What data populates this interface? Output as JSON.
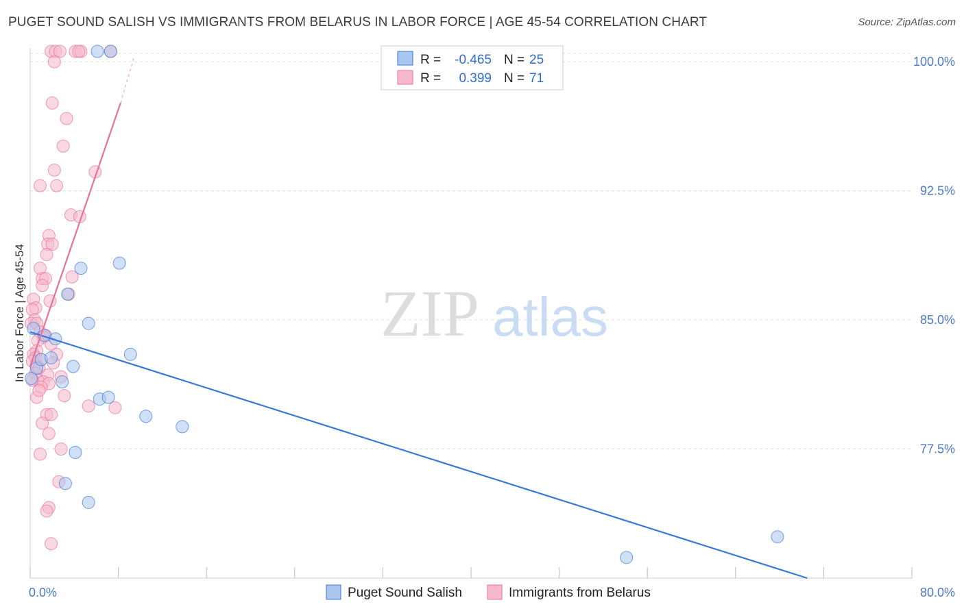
{
  "header": {
    "title": "PUGET SOUND SALISH VS IMMIGRANTS FROM BELARUS IN LABOR FORCE | AGE 45-54 CORRELATION CHART",
    "source": "Source: ZipAtlas.com"
  },
  "watermark": {
    "zip": "ZIP",
    "atlas": "atlas"
  },
  "chart_data": {
    "type": "scatter",
    "xlabel": "",
    "ylabel": "In Labor Force | Age 45-54",
    "xlim": [
      0,
      80
    ],
    "ylim": [
      70.0,
      100.8
    ],
    "x_tick_labels": [
      "0.0%",
      "80.0%"
    ],
    "y_ticks": [
      77.5,
      85.0,
      92.5,
      100.0
    ],
    "y_tick_labels": [
      "77.5%",
      "85.0%",
      "92.5%",
      "100.0%"
    ],
    "grid": true,
    "legend_position": "top-center",
    "series": [
      {
        "name": "Puget Sound Salish",
        "color": "#3a78d6",
        "fill": "#aac6ee",
        "R": "-0.465",
        "N": "25",
        "trend": {
          "x": [
            0,
            70.5
          ],
          "y": [
            84.3,
            70.0
          ]
        },
        "points": [
          [
            7.3,
            100.6
          ],
          [
            6.1,
            100.6
          ],
          [
            0.6,
            82.2
          ],
          [
            0.1,
            81.6
          ],
          [
            1.0,
            82.7
          ],
          [
            1.3,
            84.1
          ],
          [
            1.9,
            82.8
          ],
          [
            2.3,
            83.9
          ],
          [
            3.4,
            86.5
          ],
          [
            4.6,
            88.0
          ],
          [
            5.3,
            84.8
          ],
          [
            3.9,
            82.3
          ],
          [
            2.9,
            81.4
          ],
          [
            8.1,
            88.3
          ],
          [
            9.1,
            83.0
          ],
          [
            6.3,
            80.4
          ],
          [
            7.1,
            80.5
          ],
          [
            10.5,
            79.4
          ],
          [
            13.8,
            78.8
          ],
          [
            4.1,
            77.3
          ],
          [
            3.2,
            75.5
          ],
          [
            5.3,
            74.4
          ],
          [
            67.8,
            72.4
          ],
          [
            54.1,
            71.2
          ],
          [
            0.3,
            84.5
          ]
        ]
      },
      {
        "name": "Immigrants from Belarus",
        "color": "#e8709a",
        "fill": "#f6b8cc",
        "R": "0.399",
        "N": "71",
        "trend": {
          "x": [
            0,
            8.2
          ],
          "y": [
            82.3,
            97.6
          ]
        },
        "trend_dashed": {
          "x": [
            8.2,
            9.4
          ],
          "y": [
            97.6,
            100.2
          ]
        },
        "points": [
          [
            1.9,
            100.6
          ],
          [
            2.3,
            100.6
          ],
          [
            2.7,
            100.6
          ],
          [
            4.1,
            100.6
          ],
          [
            4.6,
            100.6
          ],
          [
            4.4,
            100.6
          ],
          [
            7.3,
            100.6
          ],
          [
            2.2,
            100.0
          ],
          [
            2.0,
            97.6
          ],
          [
            3.3,
            96.7
          ],
          [
            3.0,
            95.1
          ],
          [
            2.2,
            93.7
          ],
          [
            5.9,
            93.6
          ],
          [
            0.9,
            92.8
          ],
          [
            2.4,
            92.8
          ],
          [
            3.7,
            91.1
          ],
          [
            4.5,
            91.0
          ],
          [
            1.7,
            89.9
          ],
          [
            1.6,
            89.4
          ],
          [
            2.0,
            89.4
          ],
          [
            1.5,
            88.8
          ],
          [
            0.9,
            88.0
          ],
          [
            3.8,
            87.5
          ],
          [
            1.1,
            87.4
          ],
          [
            1.4,
            87.4
          ],
          [
            1.1,
            87.0
          ],
          [
            1.8,
            86.1
          ],
          [
            3.5,
            86.5
          ],
          [
            0.3,
            86.2
          ],
          [
            0.5,
            85.7
          ],
          [
            0.2,
            85.6
          ],
          [
            0.4,
            85.0
          ],
          [
            0.1,
            84.8
          ],
          [
            0.6,
            84.8
          ],
          [
            0.9,
            84.3
          ],
          [
            1.4,
            84.1
          ],
          [
            1.2,
            84.0
          ],
          [
            0.7,
            83.8
          ],
          [
            1.9,
            83.6
          ],
          [
            0.6,
            83.2
          ],
          [
            0.3,
            83.0
          ],
          [
            2.4,
            83.0
          ],
          [
            0.5,
            82.8
          ],
          [
            1.0,
            82.7
          ],
          [
            0.2,
            82.6
          ],
          [
            0.6,
            82.3
          ],
          [
            0.8,
            82.2
          ],
          [
            0.5,
            81.9
          ],
          [
            1.6,
            81.8
          ],
          [
            2.8,
            81.7
          ],
          [
            0.7,
            81.5
          ],
          [
            1.2,
            81.4
          ],
          [
            1.7,
            81.3
          ],
          [
            1.0,
            81.1
          ],
          [
            0.6,
            80.5
          ],
          [
            3.1,
            80.6
          ],
          [
            5.3,
            80.0
          ],
          [
            7.7,
            79.9
          ],
          [
            1.5,
            79.5
          ],
          [
            1.9,
            79.5
          ],
          [
            1.1,
            79.0
          ],
          [
            1.7,
            78.4
          ],
          [
            2.8,
            77.5
          ],
          [
            0.9,
            77.2
          ],
          [
            2.6,
            75.6
          ],
          [
            1.7,
            74.1
          ],
          [
            1.5,
            73.9
          ],
          [
            1.9,
            72.0
          ],
          [
            0.2,
            81.5
          ],
          [
            0.8,
            80.9
          ],
          [
            2.1,
            82.5
          ]
        ]
      }
    ]
  }
}
